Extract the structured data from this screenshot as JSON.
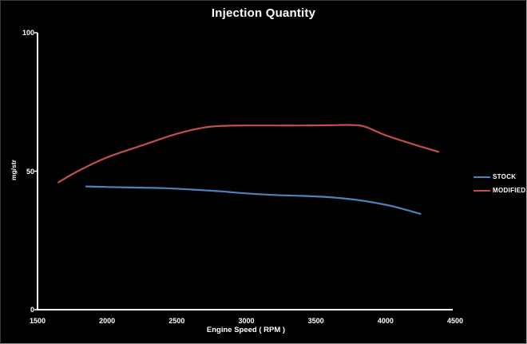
{
  "chart_data": {
    "type": "line",
    "title": "Injection Quantity",
    "xlabel": "Engine Speed ( RPM )",
    "ylabel": "mg/str",
    "xlim": [
      1500,
      4500
    ],
    "ylim": [
      0,
      100
    ],
    "xticks": [
      "1500",
      "2000",
      "2500",
      "3000",
      "3500",
      "4000",
      "4500"
    ],
    "xtick_values": [
      1500,
      2000,
      2500,
      3000,
      3500,
      4000,
      4500
    ],
    "yticks": [
      "0",
      "50",
      "100"
    ],
    "ytick_values": [
      0,
      50,
      100
    ],
    "grid": false,
    "legend_position": "right",
    "background_color": "#000000",
    "axis_color": "#ffffff",
    "text_color": "#ffffff",
    "series": [
      {
        "name": "STOCK",
        "color": "#4f81bd",
        "points": [
          [
            1850,
            44.5
          ],
          [
            2000,
            44.3
          ],
          [
            2200,
            44.1
          ],
          [
            2400,
            43.9
          ],
          [
            2600,
            43.4
          ],
          [
            2800,
            42.8
          ],
          [
            3000,
            42.0
          ],
          [
            3200,
            41.4
          ],
          [
            3400,
            41.1
          ],
          [
            3600,
            40.6
          ],
          [
            3800,
            39.6
          ],
          [
            4000,
            37.9
          ],
          [
            4100,
            36.7
          ],
          [
            4250,
            34.6
          ]
        ]
      },
      {
        "name": "MODIFIED",
        "color": "#c0504d",
        "points": [
          [
            1650,
            46.0
          ],
          [
            1800,
            50.3
          ],
          [
            2000,
            55.0
          ],
          [
            2250,
            59.3
          ],
          [
            2500,
            63.5
          ],
          [
            2700,
            65.8
          ],
          [
            2850,
            66.4
          ],
          [
            3000,
            66.5
          ],
          [
            3200,
            66.5
          ],
          [
            3400,
            66.5
          ],
          [
            3600,
            66.6
          ],
          [
            3750,
            66.7
          ],
          [
            3850,
            66.1
          ],
          [
            4000,
            63.0
          ],
          [
            4200,
            59.7
          ],
          [
            4380,
            57.0
          ]
        ]
      }
    ]
  }
}
